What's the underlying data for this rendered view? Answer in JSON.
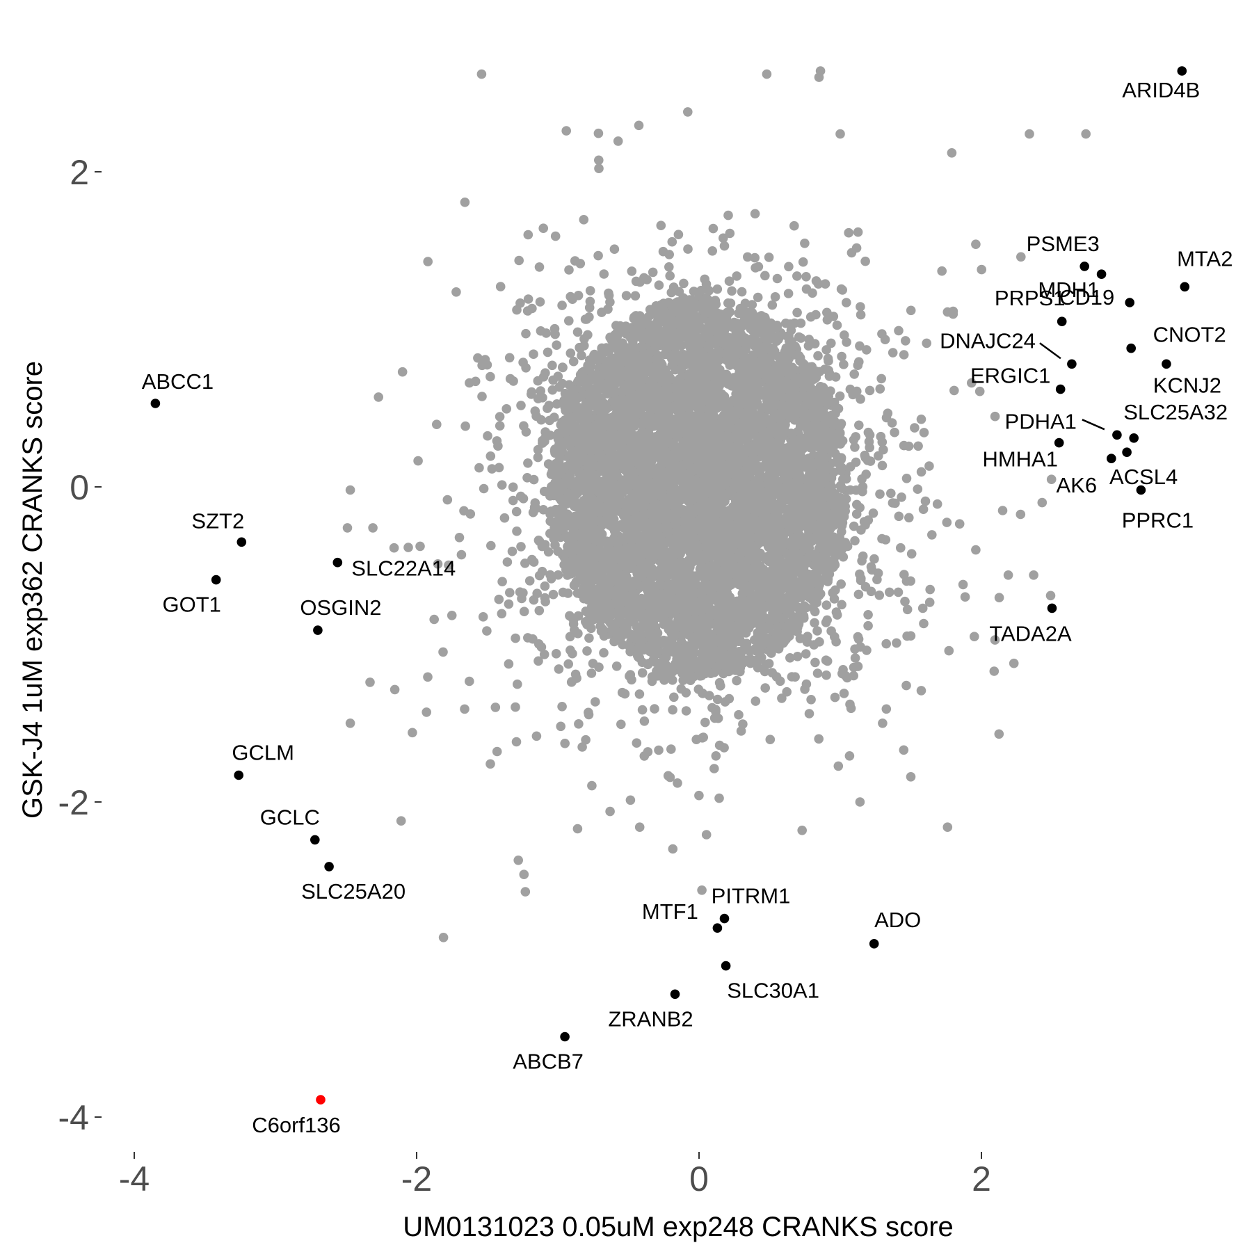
{
  "chart_data": {
    "type": "scatter",
    "title": "",
    "xlabel": "UM0131023 0.05uM exp248 CRANKS score",
    "ylabel": "GSK-J4 1uM exp362 CRANKS score",
    "xlim": [
      -4.3,
      3.8
    ],
    "ylim": [
      -4.2,
      2.7
    ],
    "x_ticks": [
      -4,
      -2,
      0,
      2
    ],
    "y_ticks": [
      -4,
      -2,
      0,
      2
    ],
    "grid": false,
    "background_series": {
      "name": "",
      "color": "#a0a0a0",
      "description": "approximately 18000 genes forming a dense cloud centred near (0, 0), spread roughly -2.5 to 2.5 in x and -2.5 to 2.5 in y",
      "outliers": [
        {
          "x": -1.54,
          "y": 2.62
        },
        {
          "x": 0.48,
          "y": 2.62
        },
        {
          "x": 0.86,
          "y": 2.64
        },
        {
          "x": 0.85,
          "y": 2.6
        },
        {
          "x": 2.34,
          "y": 2.24
        },
        {
          "x": 2.74,
          "y": 2.24
        },
        {
          "x": -0.94,
          "y": 2.26
        },
        {
          "x": -0.08,
          "y": 2.38
        },
        {
          "x": 1.0,
          "y": 2.24
        },
        {
          "x": 2.28,
          "y": 1.46
        },
        {
          "x": 1.96,
          "y": 1.54
        },
        {
          "x": 1.79,
          "y": 2.12
        },
        {
          "x": -1.92,
          "y": 1.43
        },
        {
          "x": -2.1,
          "y": 0.73
        },
        {
          "x": -2.27,
          "y": 0.57
        },
        {
          "x": -2.47,
          "y": -0.02
        },
        {
          "x": -2.49,
          "y": -0.26
        },
        {
          "x": -2.31,
          "y": -0.26
        },
        {
          "x": -2.33,
          "y": -1.24
        },
        {
          "x": -2.47,
          "y": -1.5
        },
        {
          "x": -2.11,
          "y": -2.12
        },
        {
          "x": -2.03,
          "y": -1.56
        },
        {
          "x": -1.81,
          "y": -2.86
        },
        {
          "x": -1.24,
          "y": -2.46
        },
        {
          "x": -1.28,
          "y": -2.37
        },
        {
          "x": -1.23,
          "y": -2.57
        },
        {
          "x": 0.02,
          "y": -2.56
        },
        {
          "x": 1.76,
          "y": -2.16
        },
        {
          "x": 1.77,
          "y": -1.04
        },
        {
          "x": 2.23,
          "y": -1.12
        },
        {
          "x": 2.49,
          "y": -0.69
        },
        {
          "x": 2.19,
          "y": -0.56
        },
        {
          "x": 2.37,
          "y": -0.56
        },
        {
          "x": 2.43,
          "y": -0.1
        },
        {
          "x": 2.15,
          "y": -0.15
        },
        {
          "x": 1.76,
          "y": 1.11
        },
        {
          "x": 1.72,
          "y": 1.37
        },
        {
          "x": 1.93,
          "y": 0.66
        },
        {
          "x": 1.96,
          "y": -0.4
        },
        {
          "x": 1.87,
          "y": -0.62
        },
        {
          "x": 1.95,
          "y": -0.95
        },
        {
          "x": 2.09,
          "y": -1.17
        },
        {
          "x": 1.45,
          "y": -1.67
        },
        {
          "x": 1.5,
          "y": -1.84
        },
        {
          "x": 1.3,
          "y": -1.5
        },
        {
          "x": 1.14,
          "y": -2.0
        },
        {
          "x": 0.73,
          "y": -2.18
        },
        {
          "x": -0.42,
          "y": -2.16
        },
        {
          "x": -0.86,
          "y": -2.17
        },
        {
          "x": -0.63,
          "y": -2.06
        },
        {
          "x": -1.43,
          "y": -1.68
        },
        {
          "x": -1.66,
          "y": -1.41
        },
        {
          "x": -1.93,
          "y": -1.43
        }
      ]
    },
    "highlighted_genes": [
      {
        "gene": "ARID4B",
        "x": 3.42,
        "y": 2.64,
        "color": "#000000"
      },
      {
        "gene": "PSME3",
        "x": 2.73,
        "y": 1.4,
        "color": "#000000"
      },
      {
        "gene": "MTA2",
        "x": 3.44,
        "y": 1.27,
        "color": "#000000"
      },
      {
        "gene": "CD19",
        "x": 2.85,
        "y": 1.35,
        "color": "#000000"
      },
      {
        "gene": "PRPS1",
        "x": 2.57,
        "y": 1.05,
        "color": "#000000"
      },
      {
        "gene": "DNAJC24",
        "x": 2.64,
        "y": 0.78,
        "color": "#000000"
      },
      {
        "gene": "MDH1",
        "x": 3.05,
        "y": 1.17,
        "color": "#000000"
      },
      {
        "gene": "CNOT2",
        "x": 3.06,
        "y": 0.88,
        "color": "#000000"
      },
      {
        "gene": "KCNJ2",
        "x": 3.31,
        "y": 0.78,
        "color": "#000000"
      },
      {
        "gene": "ERGIC1",
        "x": 2.56,
        "y": 0.62,
        "color": "#000000"
      },
      {
        "gene": "PDHA1",
        "x": 2.96,
        "y": 0.33,
        "color": "#000000"
      },
      {
        "gene": "SLC25A32",
        "x": 3.08,
        "y": 0.31,
        "color": "#000000"
      },
      {
        "gene": "HMHA1",
        "x": 2.55,
        "y": 0.28,
        "color": "#000000"
      },
      {
        "gene": "ACSL4",
        "x": 3.03,
        "y": 0.22,
        "color": "#000000"
      },
      {
        "gene": "AK6",
        "x": 2.92,
        "y": 0.18,
        "color": "#000000"
      },
      {
        "gene": "PPRC1",
        "x": 3.13,
        "y": -0.02,
        "color": "#000000"
      },
      {
        "gene": "TADA2A",
        "x": 2.5,
        "y": -0.77,
        "color": "#000000"
      },
      {
        "gene": "ABCC1",
        "x": -3.85,
        "y": 0.53,
        "color": "#000000"
      },
      {
        "gene": "SZT2",
        "x": -3.24,
        "y": -0.35,
        "color": "#000000"
      },
      {
        "gene": "GOT1",
        "x": -3.42,
        "y": -0.59,
        "color": "#000000"
      },
      {
        "gene": "SLC22A14",
        "x": -2.56,
        "y": -0.48,
        "color": "#000000"
      },
      {
        "gene": "OSGIN2",
        "x": -2.7,
        "y": -0.91,
        "color": "#000000"
      },
      {
        "gene": "GCLM",
        "x": -3.26,
        "y": -1.83,
        "color": "#000000"
      },
      {
        "gene": "GCLC",
        "x": -2.72,
        "y": -2.24,
        "color": "#000000"
      },
      {
        "gene": "SLC25A20",
        "x": -2.62,
        "y": -2.41,
        "color": "#000000"
      },
      {
        "gene": "PITRM1",
        "x": 0.18,
        "y": -2.74,
        "color": "#000000"
      },
      {
        "gene": "MTF1",
        "x": 0.13,
        "y": -2.8,
        "color": "#000000"
      },
      {
        "gene": "SLC30A1",
        "x": 0.19,
        "y": -3.04,
        "color": "#000000"
      },
      {
        "gene": "ZRANB2",
        "x": -0.17,
        "y": -3.22,
        "color": "#000000"
      },
      {
        "gene": "ADO",
        "x": 1.24,
        "y": -2.9,
        "color": "#000000"
      },
      {
        "gene": "ABCB7",
        "x": -0.95,
        "y": -3.49,
        "color": "#000000"
      },
      {
        "gene": "C6orf136",
        "x": -2.68,
        "y": -3.89,
        "color": "#ff0000"
      }
    ]
  }
}
